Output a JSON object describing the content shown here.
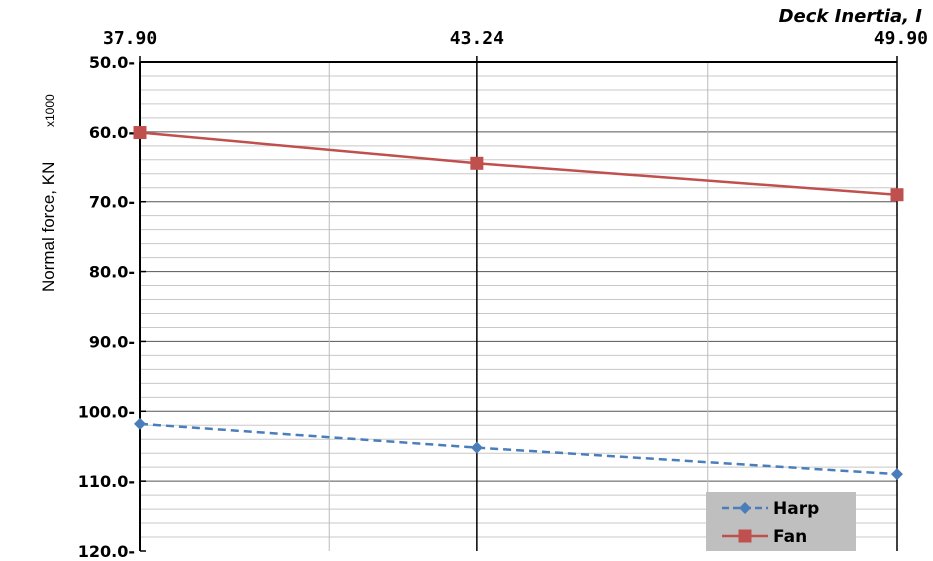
{
  "chart_data": {
    "type": "line",
    "xlabel": "Deck Inertia, I",
    "ylabel": "Normal force, KN",
    "ylabel_multiplier": "x1000",
    "x": [
      37.9,
      43.24,
      49.9
    ],
    "x_tick_labels": [
      "37.90",
      "43.24",
      "49.90"
    ],
    "x_axis_position": "top",
    "y_axis_inverted": true,
    "ylim": [
      50,
      120
    ],
    "y_ticks": [
      50,
      60,
      70,
      80,
      90,
      100,
      110,
      120
    ],
    "y_tick_labels": [
      "50.0-",
      "60.0-",
      "70.0-",
      "80.0-",
      "90.0-",
      "100.0-",
      "110.0-",
      "120.0-"
    ],
    "grid": true,
    "legend_position": "bottom-right",
    "series": [
      {
        "name": "Harp",
        "values": [
          101.8,
          105.2,
          109.0
        ],
        "color": "#4a7ebb",
        "line_style": "dashed",
        "marker": "diamond"
      },
      {
        "name": "Fan",
        "values": [
          60.1,
          64.5,
          69.0
        ],
        "color": "#c0504d",
        "line_style": "solid",
        "marker": "square"
      }
    ]
  }
}
